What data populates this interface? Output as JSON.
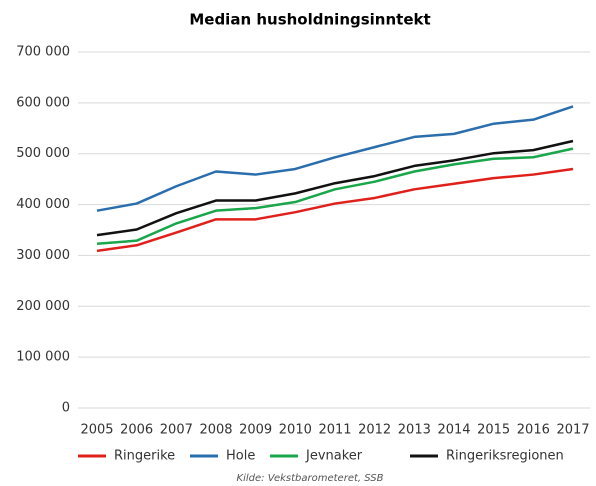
{
  "chart_data": {
    "type": "line",
    "title": "Median husholdningsinntekt",
    "x": [
      2005,
      2006,
      2007,
      2008,
      2009,
      2010,
      2011,
      2012,
      2013,
      2014,
      2015,
      2016,
      2017
    ],
    "series": [
      {
        "name": "Ringerike",
        "color": "#e0201b",
        "values": [
          309000,
          320000,
          345000,
          371000,
          371000,
          385000,
          402000,
          413000,
          430000,
          441000,
          452000,
          459000,
          470000
        ]
      },
      {
        "name": "Hole",
        "color": "#2a6ead",
        "values": [
          388000,
          402000,
          436000,
          465000,
          459000,
          470000,
          493000,
          513000,
          533000,
          539000,
          559000,
          567000,
          593000
        ]
      },
      {
        "name": "Jevnaker",
        "color": "#1aa64a",
        "values": [
          323000,
          329000,
          363000,
          388000,
          393000,
          405000,
          430000,
          445000,
          465000,
          479000,
          490000,
          493000,
          510000
        ]
      },
      {
        "name": "Ringeriksregionen",
        "color": "#111111",
        "values": [
          340000,
          351000,
          383000,
          408000,
          408000,
          422000,
          442000,
          456000,
          476000,
          487000,
          501000,
          507000,
          525000
        ]
      }
    ],
    "ylim": [
      0,
      700000
    ],
    "yticks": [
      0,
      {
        "value": 100000,
        "label": "100 000"
      },
      {
        "value": 200000,
        "label": "200 000"
      },
      {
        "value": 300000,
        "label": "300 000"
      },
      {
        "value": 400000,
        "label": "400 000"
      },
      {
        "value": 500000,
        "label": "500 000"
      },
      {
        "value": 600000,
        "label": "600 000"
      },
      {
        "value": 700000,
        "label": "700 000"
      }
    ],
    "grid": true,
    "legend": "bottom",
    "source": "Kilde: Vekstbarometeret, SSB"
  }
}
